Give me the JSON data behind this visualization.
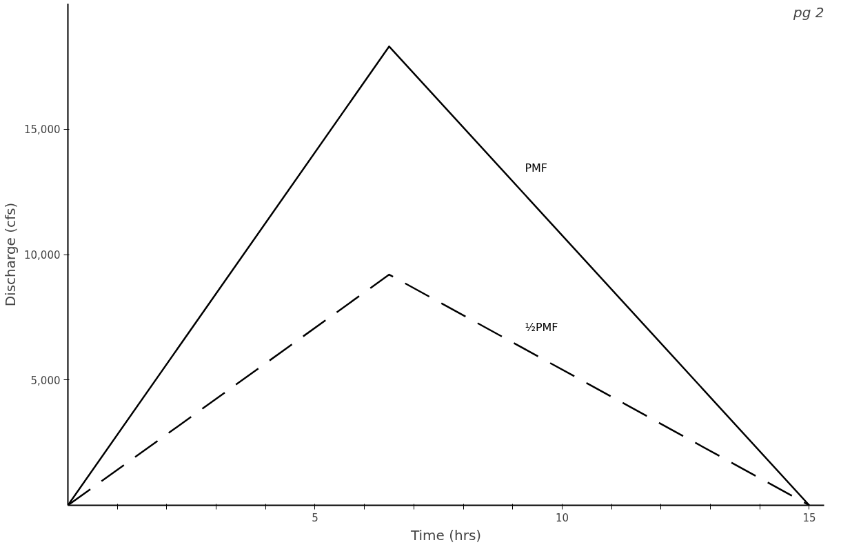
{
  "chart_data": {
    "type": "line",
    "xlabel": "Time (hrs)",
    "ylabel": "Discharge (cfs)",
    "annotations": [
      "pg 2"
    ],
    "x": [
      0,
      6.5,
      15
    ],
    "series": [
      {
        "name": "PMF",
        "color": "#000000",
        "values": [
          0,
          18300,
          0
        ],
        "line_style": "solid"
      },
      {
        "name": "½PMF",
        "color": "#000000",
        "values": [
          0,
          9200,
          0
        ],
        "line_style": "dashed"
      }
    ],
    "xlim": [
      0,
      15.3
    ],
    "ylim": [
      0,
      20000
    ],
    "xticks": [
      {
        "value": 1,
        "label": null
      },
      {
        "value": 2,
        "label": null
      },
      {
        "value": 3,
        "label": null
      },
      {
        "value": 4,
        "label": null
      },
      5,
      {
        "value": 6,
        "label": null
      },
      {
        "value": 7,
        "label": null
      },
      {
        "value": 8,
        "label": null
      },
      {
        "value": 9,
        "label": null
      },
      10,
      {
        "value": 11,
        "label": null
      },
      {
        "value": 12,
        "label": null
      },
      {
        "value": 13,
        "label": null
      },
      {
        "value": 14,
        "label": null
      },
      15
    ],
    "yticks": [
      {
        "value": 5000,
        "label": "5,000"
      },
      {
        "value": 10000,
        "label": "10,000"
      },
      {
        "value": 15000,
        "label": "15,000"
      }
    ],
    "grid": false,
    "marker": "none"
  }
}
